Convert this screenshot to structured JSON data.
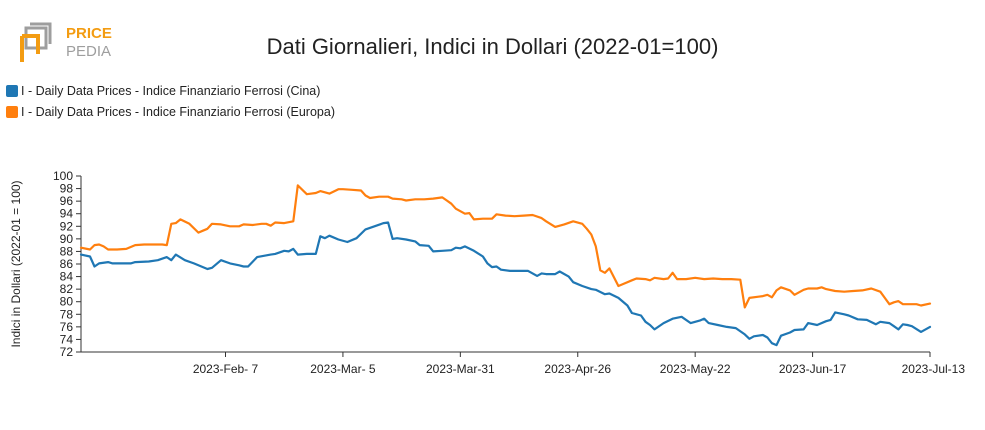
{
  "logo": {
    "top_word": "PRICE",
    "bottom_word": "PEDIA",
    "accent_color": "#f39c12",
    "grey_color": "#9e9e9e"
  },
  "chart_data": {
    "type": "line",
    "title": "Dati Giornalieri, Indici in Dollari (2022-01=100)",
    "xlabel": "",
    "ylabel": "Indici in Dollari (2022-01 = 100)",
    "ylim": [
      72,
      100
    ],
    "yticks": [
      72,
      74,
      76,
      78,
      80,
      82,
      84,
      86,
      88,
      90,
      92,
      94,
      96,
      98,
      100
    ],
    "xlim": [
      "2023-01-06",
      "2023-07-13"
    ],
    "xticks": [
      {
        "date": "2023-02-07",
        "label": "2023-Feb- 7"
      },
      {
        "date": "2023-03-05",
        "label": "2023-Mar- 5"
      },
      {
        "date": "2023-03-31",
        "label": "2023-Mar-31"
      },
      {
        "date": "2023-04-26",
        "label": "2023-Apr-26"
      },
      {
        "date": "2023-05-22",
        "label": "2023-May-22"
      },
      {
        "date": "2023-06-17",
        "label": "2023-Jun-17"
      },
      {
        "date": "2023-07-13",
        "label": "2023-Jul-13"
      }
    ],
    "grid": false,
    "legend_position": "top-left",
    "series": [
      {
        "name": "I - Daily Data Prices - Indice Finanziario Ferrosi (Cina)",
        "color": "#1f77b4",
        "points": [
          [
            "2023-01-06",
            87.5
          ],
          [
            "2023-01-08",
            87.2
          ],
          [
            "2023-01-09",
            85.6
          ],
          [
            "2023-01-10",
            86.1
          ],
          [
            "2023-01-12",
            86.3
          ],
          [
            "2023-01-13",
            86.1
          ],
          [
            "2023-01-15",
            86.1
          ],
          [
            "2023-01-17",
            86.1
          ],
          [
            "2023-01-18",
            86.3
          ],
          [
            "2023-01-21",
            86.4
          ],
          [
            "2023-01-23",
            86.6
          ],
          [
            "2023-01-25",
            87.1
          ],
          [
            "2023-01-26",
            86.6
          ],
          [
            "2023-01-27",
            87.5
          ],
          [
            "2023-01-29",
            86.6
          ],
          [
            "2023-01-31",
            86.1
          ],
          [
            "2023-02-02",
            85.5
          ],
          [
            "2023-02-03",
            85.2
          ],
          [
            "2023-02-04",
            85.4
          ],
          [
            "2023-02-06",
            86.6
          ],
          [
            "2023-02-08",
            86.1
          ],
          [
            "2023-02-10",
            85.8
          ],
          [
            "2023-02-11",
            85.6
          ],
          [
            "2023-02-12",
            85.6
          ],
          [
            "2023-02-14",
            87.1
          ],
          [
            "2023-02-17",
            87.5
          ],
          [
            "2023-02-18",
            87.6
          ],
          [
            "2023-02-20",
            88.1
          ],
          [
            "2023-02-21",
            88.0
          ],
          [
            "2023-02-22",
            88.4
          ],
          [
            "2023-02-23",
            87.5
          ],
          [
            "2023-02-25",
            87.6
          ],
          [
            "2023-02-27",
            87.6
          ],
          [
            "2023-02-28",
            90.4
          ],
          [
            "2023-03-01",
            90.1
          ],
          [
            "2023-03-02",
            90.5
          ],
          [
            "2023-03-04",
            89.9
          ],
          [
            "2023-03-06",
            89.5
          ],
          [
            "2023-03-08",
            90.1
          ],
          [
            "2023-03-10",
            91.5
          ],
          [
            "2023-03-12",
            92.0
          ],
          [
            "2023-03-14",
            92.5
          ],
          [
            "2023-03-15",
            92.6
          ],
          [
            "2023-03-16",
            90.0
          ],
          [
            "2023-03-17",
            90.1
          ],
          [
            "2023-03-19",
            89.9
          ],
          [
            "2023-03-21",
            89.6
          ],
          [
            "2023-03-22",
            89.0
          ],
          [
            "2023-03-24",
            88.9
          ],
          [
            "2023-03-25",
            88.0
          ],
          [
            "2023-03-27",
            88.1
          ],
          [
            "2023-03-29",
            88.2
          ],
          [
            "2023-03-30",
            88.6
          ],
          [
            "2023-03-31",
            88.5
          ],
          [
            "2023-04-01",
            88.8
          ],
          [
            "2023-04-03",
            88.1
          ],
          [
            "2023-04-05",
            87.2
          ],
          [
            "2023-04-06",
            86.1
          ],
          [
            "2023-04-07",
            85.5
          ],
          [
            "2023-04-08",
            85.6
          ],
          [
            "2023-04-09",
            85.1
          ],
          [
            "2023-04-11",
            84.9
          ],
          [
            "2023-04-13",
            84.9
          ],
          [
            "2023-04-15",
            84.9
          ],
          [
            "2023-04-17",
            84.1
          ],
          [
            "2023-04-18",
            84.5
          ],
          [
            "2023-04-19",
            84.4
          ],
          [
            "2023-04-21",
            84.4
          ],
          [
            "2023-04-22",
            84.8
          ],
          [
            "2023-04-24",
            84.0
          ],
          [
            "2023-04-25",
            83.1
          ],
          [
            "2023-04-27",
            82.5
          ],
          [
            "2023-04-29",
            82.0
          ],
          [
            "2023-04-30",
            81.9
          ],
          [
            "2023-05-02",
            81.2
          ],
          [
            "2023-05-03",
            81.3
          ],
          [
            "2023-05-05",
            80.6
          ],
          [
            "2023-05-07",
            79.4
          ],
          [
            "2023-05-08",
            78.2
          ],
          [
            "2023-05-10",
            77.8
          ],
          [
            "2023-05-11",
            76.8
          ],
          [
            "2023-05-12",
            76.3
          ],
          [
            "2023-05-13",
            75.6
          ],
          [
            "2023-05-15",
            76.6
          ],
          [
            "2023-05-17",
            77.3
          ],
          [
            "2023-05-19",
            77.6
          ],
          [
            "2023-05-21",
            76.6
          ],
          [
            "2023-05-23",
            77.0
          ],
          [
            "2023-05-24",
            77.3
          ],
          [
            "2023-05-25",
            76.6
          ],
          [
            "2023-05-27",
            76.3
          ],
          [
            "2023-05-29",
            76.0
          ],
          [
            "2023-05-31",
            75.8
          ],
          [
            "2023-06-02",
            74.8
          ],
          [
            "2023-06-03",
            74.1
          ],
          [
            "2023-06-04",
            74.5
          ],
          [
            "2023-06-06",
            74.7
          ],
          [
            "2023-06-07",
            74.3
          ],
          [
            "2023-06-08",
            73.4
          ],
          [
            "2023-06-09",
            73.1
          ],
          [
            "2023-06-10",
            74.6
          ],
          [
            "2023-06-12",
            75.1
          ],
          [
            "2023-06-13",
            75.5
          ],
          [
            "2023-06-15",
            75.6
          ],
          [
            "2023-06-16",
            76.6
          ],
          [
            "2023-06-18",
            76.3
          ],
          [
            "2023-06-20",
            76.9
          ],
          [
            "2023-06-21",
            77.1
          ],
          [
            "2023-06-22",
            78.3
          ],
          [
            "2023-06-24",
            78.0
          ],
          [
            "2023-06-25",
            77.8
          ],
          [
            "2023-06-27",
            77.2
          ],
          [
            "2023-06-29",
            77.1
          ],
          [
            "2023-07-01",
            76.4
          ],
          [
            "2023-07-02",
            76.8
          ],
          [
            "2023-07-04",
            76.6
          ],
          [
            "2023-07-05",
            76.1
          ],
          [
            "2023-07-06",
            75.6
          ],
          [
            "2023-07-07",
            76.4
          ],
          [
            "2023-07-08",
            76.3
          ],
          [
            "2023-07-09",
            76.1
          ],
          [
            "2023-07-11",
            75.2
          ],
          [
            "2023-07-13",
            76.0
          ]
        ]
      },
      {
        "name": "I - Daily Data Prices - Indice Finanziario Ferrosi (Europa)",
        "color": "#ff7f0e",
        "points": [
          [
            "2023-01-06",
            88.6
          ],
          [
            "2023-01-08",
            88.3
          ],
          [
            "2023-01-09",
            89.0
          ],
          [
            "2023-01-10",
            89.1
          ],
          [
            "2023-01-11",
            88.8
          ],
          [
            "2023-01-12",
            88.3
          ],
          [
            "2023-01-14",
            88.3
          ],
          [
            "2023-01-16",
            88.4
          ],
          [
            "2023-01-18",
            89.0
          ],
          [
            "2023-01-20",
            89.1
          ],
          [
            "2023-01-22",
            89.1
          ],
          [
            "2023-01-24",
            89.1
          ],
          [
            "2023-01-25",
            89.0
          ],
          [
            "2023-01-26",
            92.4
          ],
          [
            "2023-01-27",
            92.5
          ],
          [
            "2023-01-28",
            93.1
          ],
          [
            "2023-01-30",
            92.4
          ],
          [
            "2023-02-01",
            91.0
          ],
          [
            "2023-02-02",
            91.3
          ],
          [
            "2023-02-03",
            91.6
          ],
          [
            "2023-02-04",
            92.4
          ],
          [
            "2023-02-06",
            92.3
          ],
          [
            "2023-02-08",
            92.0
          ],
          [
            "2023-02-10",
            92.0
          ],
          [
            "2023-02-11",
            92.3
          ],
          [
            "2023-02-13",
            92.2
          ],
          [
            "2023-02-15",
            92.4
          ],
          [
            "2023-02-16",
            92.4
          ],
          [
            "2023-02-17",
            92.1
          ],
          [
            "2023-02-18",
            92.6
          ],
          [
            "2023-02-20",
            92.5
          ],
          [
            "2023-02-22",
            92.8
          ],
          [
            "2023-02-23",
            98.5
          ],
          [
            "2023-02-25",
            97.1
          ],
          [
            "2023-02-27",
            97.3
          ],
          [
            "2023-02-28",
            97.6
          ],
          [
            "2023-03-02",
            97.2
          ],
          [
            "2023-03-04",
            97.9
          ],
          [
            "2023-03-05",
            97.9
          ],
          [
            "2023-03-07",
            97.8
          ],
          [
            "2023-03-09",
            97.7
          ],
          [
            "2023-03-10",
            96.9
          ],
          [
            "2023-03-11",
            96.5
          ],
          [
            "2023-03-13",
            96.7
          ],
          [
            "2023-03-15",
            96.7
          ],
          [
            "2023-03-16",
            96.4
          ],
          [
            "2023-03-18",
            96.3
          ],
          [
            "2023-03-19",
            96.1
          ],
          [
            "2023-03-21",
            96.3
          ],
          [
            "2023-03-23",
            96.3
          ],
          [
            "2023-03-25",
            96.4
          ],
          [
            "2023-03-27",
            96.6
          ],
          [
            "2023-03-28",
            96.1
          ],
          [
            "2023-03-29",
            95.6
          ],
          [
            "2023-03-30",
            94.8
          ],
          [
            "2023-04-01",
            94.0
          ],
          [
            "2023-04-02",
            94.1
          ],
          [
            "2023-04-03",
            93.1
          ],
          [
            "2023-04-05",
            93.2
          ],
          [
            "2023-04-07",
            93.2
          ],
          [
            "2023-04-08",
            93.9
          ],
          [
            "2023-04-10",
            93.7
          ],
          [
            "2023-04-12",
            93.6
          ],
          [
            "2023-04-14",
            93.7
          ],
          [
            "2023-04-16",
            93.8
          ],
          [
            "2023-04-18",
            93.3
          ],
          [
            "2023-04-19",
            92.8
          ],
          [
            "2023-04-21",
            91.9
          ],
          [
            "2023-04-23",
            92.3
          ],
          [
            "2023-04-25",
            92.8
          ],
          [
            "2023-04-27",
            92.4
          ],
          [
            "2023-04-28",
            91.6
          ],
          [
            "2023-04-29",
            90.7
          ],
          [
            "2023-04-30",
            88.8
          ],
          [
            "2023-05-01",
            85.0
          ],
          [
            "2023-05-02",
            84.6
          ],
          [
            "2023-05-03",
            85.3
          ],
          [
            "2023-05-05",
            82.5
          ],
          [
            "2023-05-06",
            82.8
          ],
          [
            "2023-05-08",
            83.4
          ],
          [
            "2023-05-09",
            83.7
          ],
          [
            "2023-05-11",
            83.6
          ],
          [
            "2023-05-12",
            83.4
          ],
          [
            "2023-05-13",
            83.8
          ],
          [
            "2023-05-15",
            83.6
          ],
          [
            "2023-05-16",
            83.7
          ],
          [
            "2023-05-17",
            84.6
          ],
          [
            "2023-05-18",
            83.6
          ],
          [
            "2023-05-20",
            83.6
          ],
          [
            "2023-05-22",
            83.8
          ],
          [
            "2023-05-24",
            83.6
          ],
          [
            "2023-05-26",
            83.7
          ],
          [
            "2023-05-28",
            83.6
          ],
          [
            "2023-05-30",
            83.6
          ],
          [
            "2023-06-01",
            83.5
          ],
          [
            "2023-06-02",
            79.1
          ],
          [
            "2023-06-03",
            80.6
          ],
          [
            "2023-06-05",
            80.8
          ],
          [
            "2023-06-06",
            80.9
          ],
          [
            "2023-06-07",
            81.1
          ],
          [
            "2023-06-08",
            80.7
          ],
          [
            "2023-06-09",
            81.8
          ],
          [
            "2023-06-10",
            82.3
          ],
          [
            "2023-06-12",
            81.8
          ],
          [
            "2023-06-13",
            81.1
          ],
          [
            "2023-06-15",
            81.9
          ],
          [
            "2023-06-16",
            82.1
          ],
          [
            "2023-06-18",
            82.1
          ],
          [
            "2023-06-19",
            82.3
          ],
          [
            "2023-06-20",
            82.0
          ],
          [
            "2023-06-22",
            81.7
          ],
          [
            "2023-06-24",
            81.6
          ],
          [
            "2023-06-26",
            81.7
          ],
          [
            "2023-06-28",
            81.8
          ],
          [
            "2023-06-30",
            82.1
          ],
          [
            "2023-07-02",
            81.6
          ],
          [
            "2023-07-03",
            80.6
          ],
          [
            "2023-07-04",
            79.6
          ],
          [
            "2023-07-05",
            79.9
          ],
          [
            "2023-07-06",
            80.1
          ],
          [
            "2023-07-07",
            79.6
          ],
          [
            "2023-07-09",
            79.6
          ],
          [
            "2023-07-10",
            79.6
          ],
          [
            "2023-07-11",
            79.4
          ],
          [
            "2023-07-13",
            79.7
          ]
        ]
      }
    ]
  }
}
